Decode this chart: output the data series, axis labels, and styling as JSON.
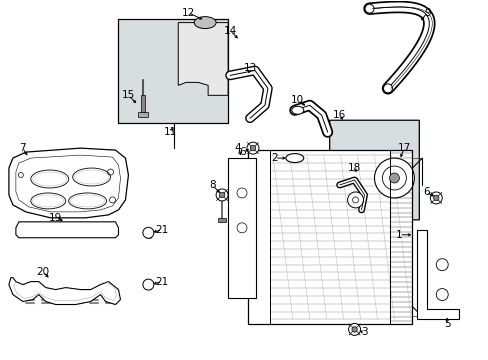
{
  "bg_color": "#ffffff",
  "line_color": "#000000",
  "fig_width": 4.89,
  "fig_height": 3.6,
  "dpi": 100,
  "shade_color": "#d8dde0",
  "part_fill": "#f8f8f8"
}
